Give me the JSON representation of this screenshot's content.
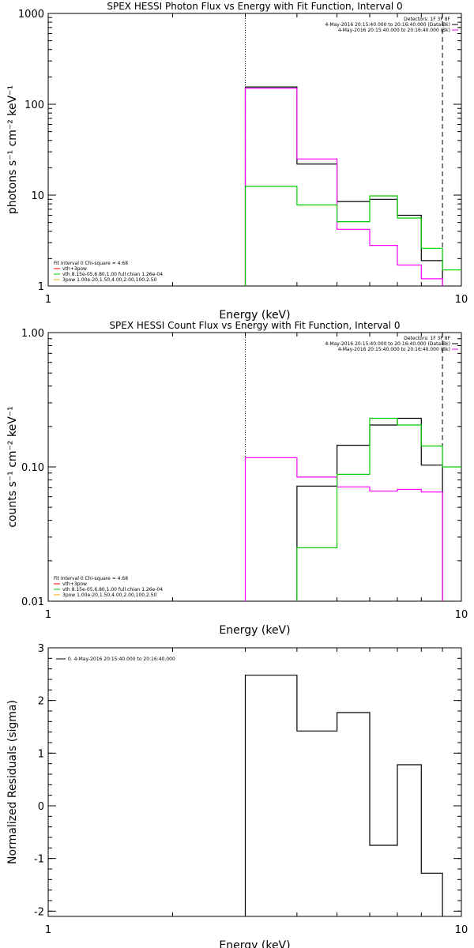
{
  "chart_data": [
    {
      "type": "line",
      "title": "SPEX HESSI Photon Flux vs Energy with Fit Function, Interval 0",
      "xlabel": "Energy (keV)",
      "ylabel": "photons s⁻¹ cm⁻² keV⁻¹",
      "xscale": "log",
      "yscale": "log",
      "xlim": [
        1,
        10
      ],
      "ylim": [
        1,
        1000
      ],
      "xticks": [
        "1",
        "10"
      ],
      "yticks": [
        "1",
        "10",
        "100",
        "1000"
      ],
      "bin_edges": [
        3,
        4,
        5,
        6,
        7,
        8,
        9,
        10
      ],
      "series": [
        {
          "name": "4-May-2016 20:15:40.000 to 20:16:40.000 (Data-Bk)",
          "color": "#000000",
          "values": [
            155,
            22,
            8.5,
            9,
            6,
            1.9,
            null
          ]
        },
        {
          "name": "4-May-2016 20:15:40.000 to 20:16:40.000 (Bk)",
          "color": "#ff00ff",
          "values": [
            150,
            25,
            4.2,
            2.8,
            1.7,
            1.2,
            null
          ]
        },
        {
          "name": "vth 8.15e-05,6.80,1.00 full chian 1.26e-04",
          "color": "#00cc00",
          "values": [
            12.5,
            7.8,
            5.1,
            9.8,
            5.6,
            2.6,
            1.5
          ]
        }
      ],
      "vlines": [
        {
          "x": 3,
          "style": "dotted"
        },
        {
          "x": 9,
          "style": "dashed"
        }
      ],
      "legend_topright": [
        "Detectors: 1F 3F 8F",
        "4-May-2016 20:15:40.000 to 20:16:40.000 (Data-Bk)",
        "4-May-2016 20:15:40.000 to 20:16:40.000 (Bk)"
      ],
      "legend_bottomleft": [
        "Fit Interval 0   Chi-square = 4.68",
        "vth+3pow",
        "vth 8.15e-05,6.80,1.00  full chian 1.26e-04",
        "3pow 1.00e-20,1.50,4.00,2.00,100,2.50"
      ]
    },
    {
      "type": "line",
      "title": "SPEX HESSI Count Flux vs Energy with Fit Function, Interval 0",
      "xlabel": "Energy (keV)",
      "ylabel": "counts s⁻¹ cm⁻² keV⁻¹",
      "xscale": "log",
      "yscale": "log",
      "xlim": [
        1,
        10
      ],
      "ylim": [
        0.01,
        1
      ],
      "xticks": [
        "1",
        "10"
      ],
      "yticks": [
        "0.01",
        "0.10",
        "1.00"
      ],
      "bin_edges": [
        3,
        4,
        5,
        6,
        7,
        8,
        9,
        10
      ],
      "series": [
        {
          "name": "4-May-2016 20:15:40.000 to 20:16:40.000 (Data-Bk)",
          "color": "#000000",
          "values": [
            null,
            0.072,
            0.145,
            0.205,
            0.23,
            0.103,
            null
          ]
        },
        {
          "name": "4-May-2016 20:15:40.000 to 20:16:40.000 (Bk)",
          "color": "#ff00ff",
          "values": [
            0.117,
            0.084,
            0.071,
            0.066,
            0.068,
            0.065,
            null
          ]
        },
        {
          "name": "vth 8.15e-05,6.80,1.00 full chian 1.26e-04",
          "color": "#00cc00",
          "values": [
            null,
            0.025,
            0.088,
            0.23,
            0.205,
            0.143,
            0.1
          ]
        }
      ],
      "vlines": [
        {
          "x": 3,
          "style": "dotted"
        },
        {
          "x": 9,
          "style": "dashed"
        }
      ],
      "legend_topright": [
        "Detectors: 1F 3F 8F",
        "4-May-2016 20:15:40.000 to 20:16:40.000 (Data-Bk)",
        "4-May-2016 20:15:40.000 to 20:16:40.000 (Bk)"
      ],
      "legend_bottomleft": [
        "Fit Interval 0   Chi-square = 4.68",
        "vth+3pow",
        "vth 8.15e-05,6.80,1.00  full chian 1.26e-04",
        "3pow 1.00e-20,1.50,4.00,2.00,100,2.50"
      ]
    },
    {
      "type": "line",
      "title": "",
      "xlabel": "Energy (keV)",
      "ylabel": "Normalized Residuals (sigma)",
      "xscale": "log",
      "yscale": "linear",
      "xlim": [
        1,
        10
      ],
      "ylim": [
        -2.1,
        3
      ],
      "xticks": [
        "1",
        "10"
      ],
      "yticks": [
        "-2",
        "-1",
        "0",
        "1",
        "2",
        "3"
      ],
      "bin_edges": [
        3,
        4,
        5,
        6,
        7,
        8,
        9
      ],
      "series": [
        {
          "name": "0.  4-May-2016 20:15:40.000 to 20:16:40.000",
          "color": "#000000",
          "values": [
            2.48,
            1.42,
            1.77,
            -0.75,
            0.78,
            -1.28
          ]
        }
      ],
      "legend_topleft": [
        "0.  4-May-2016 20:15:40.000 to 20:16:40.000"
      ]
    }
  ]
}
